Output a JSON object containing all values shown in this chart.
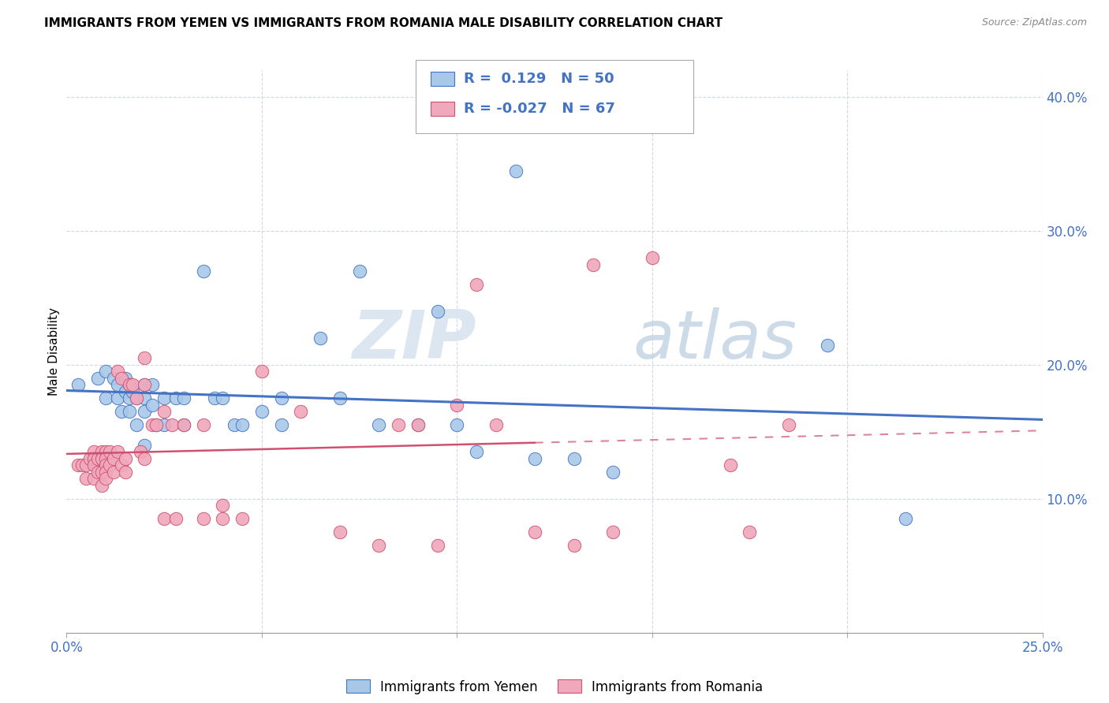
{
  "title": "IMMIGRANTS FROM YEMEN VS IMMIGRANTS FROM ROMANIA MALE DISABILITY CORRELATION CHART",
  "source": "Source: ZipAtlas.com",
  "ylabel": "Male Disability",
  "xlim": [
    0.0,
    0.25
  ],
  "ylim": [
    0.0,
    0.42
  ],
  "legend_r_yemen": "0.129",
  "legend_n_yemen": "50",
  "legend_r_romania": "-0.027",
  "legend_n_romania": "67",
  "color_yemen": "#A8C8E8",
  "color_romania": "#F0A8BC",
  "line_color_yemen": "#4472C4",
  "line_color_romania": "#D05070",
  "watermark_zip": "ZIP",
  "watermark_atlas": "atlas",
  "yemen_x": [
    0.003,
    0.008,
    0.01,
    0.01,
    0.012,
    0.013,
    0.013,
    0.014,
    0.015,
    0.015,
    0.016,
    0.016,
    0.016,
    0.017,
    0.018,
    0.018,
    0.02,
    0.02,
    0.02,
    0.02,
    0.022,
    0.022,
    0.023,
    0.025,
    0.025,
    0.028,
    0.03,
    0.03,
    0.035,
    0.038,
    0.04,
    0.043,
    0.045,
    0.05,
    0.055,
    0.055,
    0.065,
    0.07,
    0.075,
    0.08,
    0.09,
    0.095,
    0.1,
    0.105,
    0.115,
    0.12,
    0.13,
    0.14,
    0.195,
    0.215
  ],
  "yemen_y": [
    0.185,
    0.19,
    0.195,
    0.175,
    0.19,
    0.185,
    0.175,
    0.165,
    0.19,
    0.18,
    0.185,
    0.175,
    0.165,
    0.18,
    0.175,
    0.155,
    0.185,
    0.175,
    0.165,
    0.14,
    0.185,
    0.17,
    0.155,
    0.175,
    0.155,
    0.175,
    0.175,
    0.155,
    0.27,
    0.175,
    0.175,
    0.155,
    0.155,
    0.165,
    0.175,
    0.155,
    0.22,
    0.175,
    0.27,
    0.155,
    0.155,
    0.24,
    0.155,
    0.135,
    0.345,
    0.13,
    0.13,
    0.12,
    0.215,
    0.085
  ],
  "romania_x": [
    0.003,
    0.004,
    0.005,
    0.005,
    0.006,
    0.007,
    0.007,
    0.007,
    0.007,
    0.008,
    0.008,
    0.009,
    0.009,
    0.009,
    0.009,
    0.01,
    0.01,
    0.01,
    0.01,
    0.01,
    0.011,
    0.011,
    0.012,
    0.012,
    0.013,
    0.013,
    0.014,
    0.014,
    0.015,
    0.015,
    0.016,
    0.017,
    0.018,
    0.019,
    0.02,
    0.02,
    0.02,
    0.022,
    0.023,
    0.025,
    0.025,
    0.027,
    0.028,
    0.03,
    0.035,
    0.035,
    0.04,
    0.04,
    0.045,
    0.05,
    0.06,
    0.07,
    0.08,
    0.085,
    0.09,
    0.095,
    0.1,
    0.105,
    0.11,
    0.12,
    0.13,
    0.135,
    0.14,
    0.15,
    0.17,
    0.175,
    0.185
  ],
  "romania_y": [
    0.125,
    0.125,
    0.125,
    0.115,
    0.13,
    0.135,
    0.13,
    0.125,
    0.115,
    0.13,
    0.12,
    0.135,
    0.13,
    0.12,
    0.11,
    0.135,
    0.13,
    0.125,
    0.12,
    0.115,
    0.135,
    0.125,
    0.13,
    0.12,
    0.195,
    0.135,
    0.19,
    0.125,
    0.13,
    0.12,
    0.185,
    0.185,
    0.175,
    0.135,
    0.205,
    0.185,
    0.13,
    0.155,
    0.155,
    0.165,
    0.085,
    0.155,
    0.085,
    0.155,
    0.155,
    0.085,
    0.095,
    0.085,
    0.085,
    0.195,
    0.165,
    0.075,
    0.065,
    0.155,
    0.155,
    0.065,
    0.17,
    0.26,
    0.155,
    0.075,
    0.065,
    0.275,
    0.075,
    0.28,
    0.125,
    0.075,
    0.155
  ]
}
